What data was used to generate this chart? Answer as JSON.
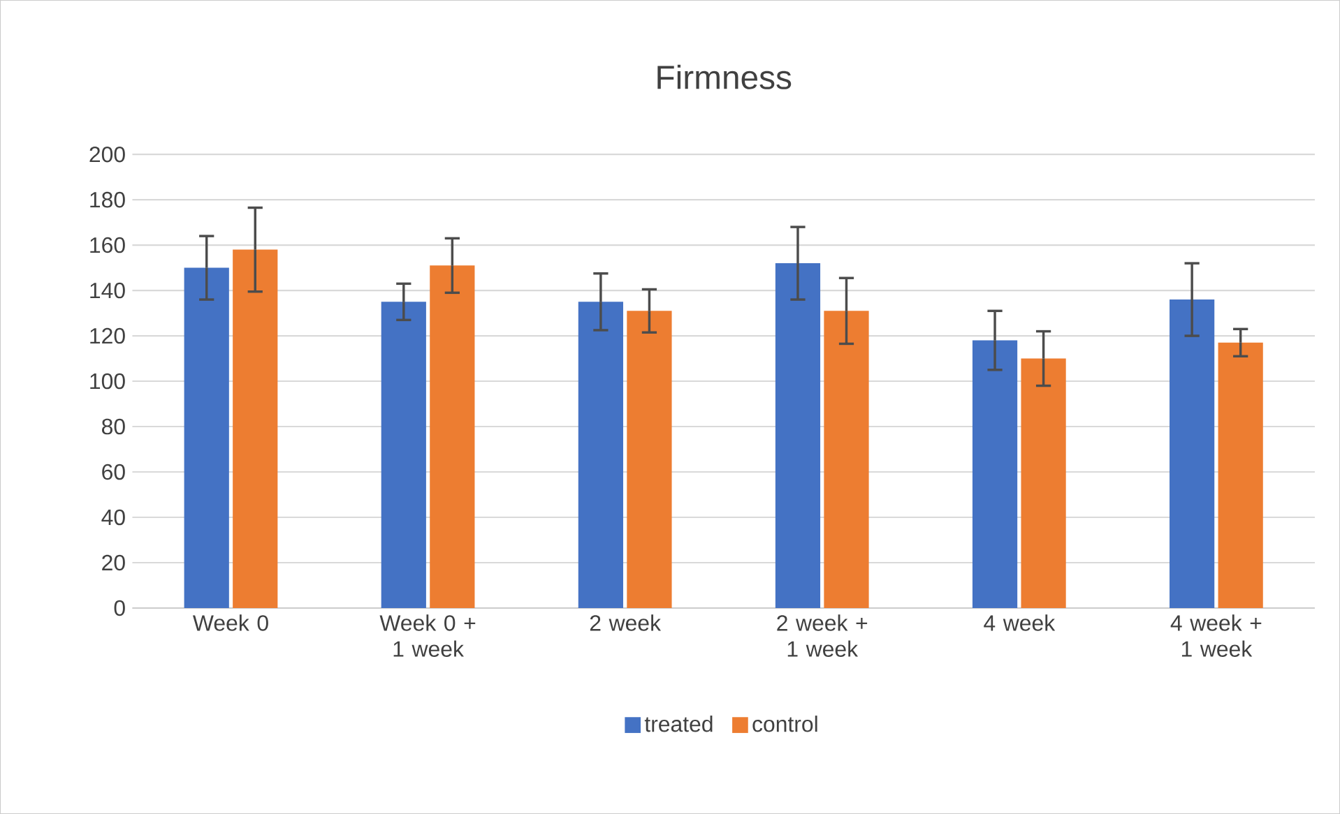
{
  "chart_data": {
    "type": "bar",
    "title": "Firmness",
    "categories": [
      "Week 0",
      "Week 0 + 1 week",
      "2 week",
      "2 week + 1 week",
      "4 week",
      "4 week + 1 week"
    ],
    "series": [
      {
        "name": "treated",
        "color": "#4472c4",
        "values": [
          150,
          135,
          135,
          152,
          118,
          136
        ],
        "errors": [
          14,
          8,
          12.5,
          16,
          13,
          16
        ]
      },
      {
        "name": "control",
        "color": "#ed7d31",
        "values": [
          158,
          151,
          131,
          131,
          110,
          117
        ],
        "errors": [
          18.5,
          12,
          9.5,
          14.5,
          12,
          6
        ]
      }
    ],
    "ylim": [
      0,
      200
    ],
    "yticks": [
      0,
      20,
      40,
      60,
      80,
      100,
      120,
      140,
      160,
      180,
      200
    ],
    "grid": "y",
    "legend": "bottom"
  }
}
